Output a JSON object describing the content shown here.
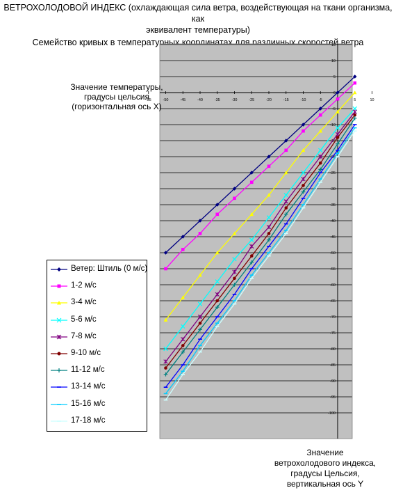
{
  "title": {
    "line1": "ВЕТРОХОЛОДОВОЙ ИНДЕКС (охлаждающая сила ветра, воздействующая на ткани организма, как",
    "line2": "эквивалент температуры)",
    "line3": "Семейство кривых в температурных координатах для различных скоростей ветра"
  },
  "axis_labels": {
    "x": [
      "Значение температуры,",
      "градусы цельсия",
      "(горизонтальная ось X)"
    ],
    "y": [
      "Значение",
      "ветрохолодового индекса,",
      "градусы Цельсия,",
      "вертикальная ось Y"
    ]
  },
  "chart_data": {
    "type": "line",
    "x": [
      -50,
      -45,
      -40,
      -35,
      -30,
      -25,
      -20,
      -15,
      -10,
      -5,
      0,
      5
    ],
    "xlim": [
      -60,
      10
    ],
    "ylim": [
      -100,
      15
    ],
    "x_ticks": [
      -55,
      -50,
      -45,
      -40,
      -35,
      -30,
      -25,
      -20,
      -15,
      -10,
      -5,
      0,
      5,
      10
    ],
    "y_ticks": [
      15,
      10,
      5,
      0,
      -5,
      -10,
      -15,
      -20,
      -25,
      -30,
      -35,
      -40,
      -45,
      -50,
      -55,
      -60,
      -65,
      -70,
      -75,
      -80,
      -85,
      -90,
      -95,
      -100
    ],
    "grid": "horizontal",
    "legend_position": "left",
    "series": [
      {
        "name": "Ветер: Штиль (0 м/с)",
        "color": "#000080",
        "marker": "diamond",
        "values": [
          -50,
          -45,
          -40,
          -35,
          -30,
          -25,
          -20,
          -15,
          -10,
          -5,
          0,
          5
        ]
      },
      {
        "name": "1-2 м/с",
        "color": "#ff00ff",
        "marker": "square",
        "values": [
          -55,
          -49,
          -44,
          -38,
          -33,
          -28,
          -23,
          -18,
          -12,
          -7,
          -2,
          3
        ]
      },
      {
        "name": "3-4 м/с",
        "color": "#ffff00",
        "marker": "triangle",
        "values": [
          -71,
          -64,
          -57,
          -50,
          -44,
          -38,
          -32,
          -25,
          -18,
          -12,
          -6,
          0
        ]
      },
      {
        "name": "5-6 м/с",
        "color": "#00ffff",
        "marker": "x",
        "values": [
          -80,
          -73,
          -66,
          -59,
          -52,
          -46,
          -39,
          -32,
          -25,
          -18,
          -11,
          -5
        ]
      },
      {
        "name": "7-8 м/с",
        "color": "#800080",
        "marker": "star",
        "values": [
          -84,
          -77,
          -70,
          -63,
          -56,
          -48,
          -42,
          -34,
          -27,
          -20,
          -13,
          -6
        ]
      },
      {
        "name": "9-10 м/с",
        "color": "#800000",
        "marker": "circle",
        "values": [
          -86,
          -79,
          -72,
          -65,
          -58,
          -51,
          -44,
          -36,
          -29,
          -22,
          -14,
          -7
        ]
      },
      {
        "name": "11-12 м/с",
        "color": "#008080",
        "marker": "plus",
        "values": [
          -88,
          -81,
          -74,
          -67,
          -60,
          -53,
          -46,
          -38,
          -31,
          -24,
          -16,
          -8
        ]
      },
      {
        "name": "13-14 м/с",
        "color": "#0000ff",
        "marker": "dash",
        "values": [
          -92,
          -85,
          -77,
          -70,
          -63,
          -55,
          -48,
          -41,
          -33,
          -25,
          -18,
          -10
        ]
      },
      {
        "name": "15-16 м/с",
        "color": "#00ccff",
        "marker": "dash",
        "values": [
          -94,
          -87,
          -79,
          -72,
          -65,
          -57,
          -50,
          -43,
          -35,
          -27,
          -19,
          -11
        ]
      },
      {
        "name": "17-18 м/с",
        "color": "#ccffff",
        "marker": "dash",
        "values": [
          -96,
          -88,
          -81,
          -73,
          -66,
          -58,
          -51,
          -44,
          -36,
          -28,
          -20,
          -12
        ]
      }
    ]
  }
}
